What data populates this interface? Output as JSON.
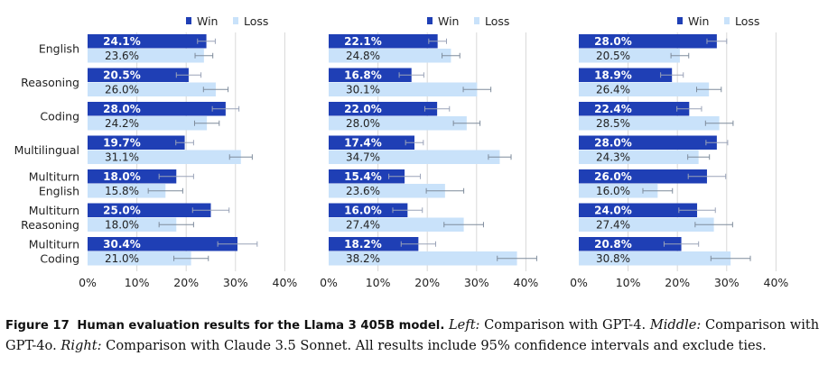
{
  "chart_data": {
    "type": "bar",
    "orientation": "horizontal",
    "categories": [
      "English",
      "Reasoning",
      "Coding",
      "Multilingual",
      "Multiturn\nEnglish",
      "Multiturn\nReasoning",
      "Multiturn\nCoding"
    ],
    "xlim": [
      0,
      40
    ],
    "xticks": [
      "0%",
      "10%",
      "20%",
      "30%",
      "40%"
    ],
    "grid": "vertical",
    "legend": "top-right",
    "series_colors": {
      "Win": "#1f3fb5",
      "Loss": "#c9e2fa"
    },
    "panels": [
      {
        "series": [
          {
            "name": "Win",
            "values": [
              24.1,
              20.5,
              28.0,
              19.7,
              18.0,
              25.0,
              30.4
            ],
            "labels": [
              "24.1%",
              "20.5%",
              "28.0%",
              "19.7%",
              "18.0%",
              "25.0%",
              "30.4%"
            ],
            "ci": [
              1.8,
              2.5,
              2.7,
              1.8,
              3.5,
              3.7,
              4.0
            ]
          },
          {
            "name": "Loss",
            "values": [
              23.6,
              26.0,
              24.2,
              31.1,
              15.8,
              18.0,
              21.0
            ],
            "labels": [
              "23.6%",
              "26.0%",
              "24.2%",
              "31.1%",
              "15.8%",
              "18.0%",
              "21.0%"
            ],
            "ci": [
              1.8,
              2.5,
              2.5,
              2.3,
              3.5,
              3.5,
              3.5
            ]
          }
        ]
      },
      {
        "series": [
          {
            "name": "Win",
            "values": [
              22.1,
              16.8,
              22.0,
              17.4,
              15.4,
              16.0,
              18.2
            ],
            "labels": [
              "22.1%",
              "16.8%",
              "22.0%",
              "17.4%",
              "15.4%",
              "16.0%",
              "18.2%"
            ],
            "ci": [
              1.8,
              2.5,
              2.5,
              1.8,
              3.2,
              3.0,
              3.5
            ]
          },
          {
            "name": "Loss",
            "values": [
              24.8,
              30.1,
              28.0,
              34.7,
              23.6,
              27.4,
              38.2
            ],
            "labels": [
              "24.8%",
              "30.1%",
              "28.0%",
              "34.7%",
              "23.6%",
              "27.4%",
              "38.2%"
            ],
            "ci": [
              1.8,
              2.8,
              2.7,
              2.3,
              3.8,
              4.0,
              4.0
            ]
          }
        ]
      },
      {
        "series": [
          {
            "name": "Win",
            "values": [
              28.0,
              18.9,
              22.4,
              28.0,
              26.0,
              24.0,
              20.8
            ],
            "labels": [
              "28.0%",
              "18.9%",
              "22.4%",
              "28.0%",
              "26.0%",
              "24.0%",
              "20.8%"
            ],
            "ci": [
              2.0,
              2.3,
              2.5,
              2.2,
              3.8,
              3.7,
              3.5
            ]
          },
          {
            "name": "Loss",
            "values": [
              20.5,
              26.4,
              28.5,
              24.3,
              16.0,
              27.4,
              30.8
            ],
            "labels": [
              "20.5%",
              "26.4%",
              "28.5%",
              "24.3%",
              "16.0%",
              "27.4%",
              "30.8%"
            ],
            "ci": [
              1.8,
              2.5,
              2.8,
              2.2,
              3.0,
              3.8,
              4.0
            ]
          }
        ]
      }
    ]
  },
  "caption": {
    "figure_number": "Figure 17",
    "lead": "Human evaluation results for the Llama 3 405B model.",
    "left_label": "Left:",
    "left_text": " Comparison with GPT-4.",
    "middle_label": "Middle:",
    "middle_text": " Comparison with GPT-4o.",
    "right_label": "Right:",
    "right_text": " Comparison with Claude 3.5 Sonnet. All results include 95% confidence intervals and exclude ties."
  }
}
